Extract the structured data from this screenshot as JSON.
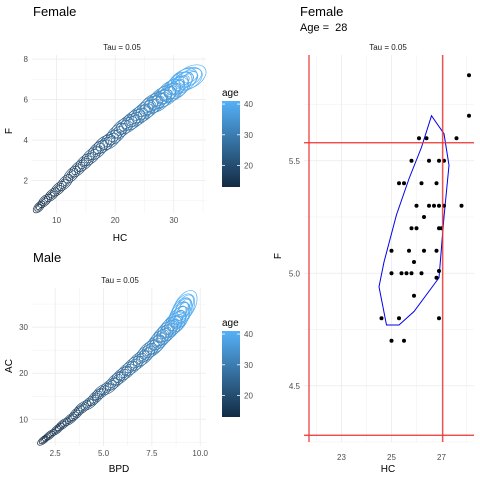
{
  "chart_data": [
    {
      "type": "contour",
      "title": "Female",
      "strip": "Tau = 0.05",
      "xlabel": "HC",
      "ylabel": "F",
      "xlim": [
        5.8,
        35.5
      ],
      "ylim": [
        0.4,
        8.2
      ],
      "x_ticks": [
        10,
        20,
        30
      ],
      "y_ticks": [
        2,
        4,
        6,
        8
      ],
      "legend": {
        "title": "age",
        "ticks": [
          20,
          30,
          40
        ],
        "range": [
          13,
          41
        ],
        "colors": [
          "#132B43",
          "#56B1F7"
        ]
      },
      "contours": [
        {
          "age": 13,
          "hc": 7.0,
          "f": 0.7,
          "w": 1.0,
          "h": 0.25
        },
        {
          "age": 14,
          "hc": 8.0,
          "f": 1.0,
          "w": 1.2,
          "h": 0.3
        },
        {
          "age": 15,
          "hc": 9.2,
          "f": 1.3,
          "w": 1.3,
          "h": 0.32
        },
        {
          "age": 16,
          "hc": 10.3,
          "f": 1.6,
          "w": 1.4,
          "h": 0.35
        },
        {
          "age": 17,
          "hc": 11.4,
          "f": 1.9,
          "w": 1.5,
          "h": 0.38
        },
        {
          "age": 18,
          "hc": 12.6,
          "f": 2.3,
          "w": 1.6,
          "h": 0.4
        },
        {
          "age": 19,
          "hc": 13.7,
          "f": 2.6,
          "w": 1.7,
          "h": 0.42
        },
        {
          "age": 20,
          "hc": 14.8,
          "f": 2.9,
          "w": 1.8,
          "h": 0.45
        },
        {
          "age": 21,
          "hc": 15.9,
          "f": 3.2,
          "w": 1.9,
          "h": 0.48
        },
        {
          "age": 22,
          "hc": 17.0,
          "f": 3.5,
          "w": 1.9,
          "h": 0.5
        },
        {
          "age": 23,
          "hc": 18.1,
          "f": 3.8,
          "w": 2.0,
          "h": 0.52
        },
        {
          "age": 24,
          "hc": 19.2,
          "f": 4.0,
          "w": 2.0,
          "h": 0.54
        },
        {
          "age": 25,
          "hc": 20.2,
          "f": 4.3,
          "w": 2.1,
          "h": 0.56
        },
        {
          "age": 26,
          "hc": 21.2,
          "f": 4.6,
          "w": 2.1,
          "h": 0.58
        },
        {
          "age": 27,
          "hc": 22.2,
          "f": 4.8,
          "w": 2.2,
          "h": 0.6
        },
        {
          "age": 28,
          "hc": 23.1,
          "f": 5.0,
          "w": 2.2,
          "h": 0.62
        },
        {
          "age": 29,
          "hc": 24.0,
          "f": 5.2,
          "w": 2.3,
          "h": 0.64
        },
        {
          "age": 30,
          "hc": 24.9,
          "f": 5.4,
          "w": 2.3,
          "h": 0.66
        },
        {
          "age": 31,
          "hc": 25.7,
          "f": 5.6,
          "w": 2.4,
          "h": 0.68
        },
        {
          "age": 32,
          "hc": 26.5,
          "f": 5.8,
          "w": 2.4,
          "h": 0.7
        },
        {
          "age": 33,
          "hc": 27.3,
          "f": 5.9,
          "w": 2.5,
          "h": 0.72
        },
        {
          "age": 34,
          "hc": 28.0,
          "f": 6.1,
          "w": 2.5,
          "h": 0.74
        },
        {
          "age": 35,
          "hc": 28.7,
          "f": 6.2,
          "w": 2.6,
          "h": 0.76
        },
        {
          "age": 36,
          "hc": 29.4,
          "f": 6.4,
          "w": 2.6,
          "h": 0.78
        },
        {
          "age": 37,
          "hc": 30.1,
          "f": 6.5,
          "w": 2.7,
          "h": 0.8
        },
        {
          "age": 38,
          "hc": 30.8,
          "f": 6.7,
          "w": 2.7,
          "h": 0.82
        },
        {
          "age": 39,
          "hc": 31.5,
          "f": 6.9,
          "w": 2.8,
          "h": 0.84
        },
        {
          "age": 40,
          "hc": 32.2,
          "f": 7.0,
          "w": 2.8,
          "h": 0.86
        },
        {
          "age": 41,
          "hc": 32.8,
          "f": 7.1,
          "w": 2.9,
          "h": 0.88
        }
      ]
    },
    {
      "type": "contour",
      "title": "Male",
      "strip": "Tau = 0.05",
      "xlabel": "BPD",
      "ylabel": "AC",
      "xlim": [
        1.3,
        10.3
      ],
      "ylim": [
        4.2,
        38.5
      ],
      "x_ticks": [
        2.5,
        5.0,
        7.5,
        10.0
      ],
      "x_tick_labels": [
        "2.5",
        "5.0",
        "7.5",
        "10.0"
      ],
      "y_ticks": [
        10,
        20,
        30
      ],
      "legend": {
        "title": "age",
        "ticks": [
          20,
          30,
          40
        ],
        "range": [
          13,
          41
        ],
        "colors": [
          "#132B43",
          "#56B1F7"
        ]
      },
      "contours": [
        {
          "age": 13,
          "bpd": 1.9,
          "ac": 5.5,
          "w": 0.3,
          "h": 0.8
        },
        {
          "age": 14,
          "bpd": 2.2,
          "ac": 6.5,
          "w": 0.35,
          "h": 0.9
        },
        {
          "age": 15,
          "bpd": 2.6,
          "ac": 7.8,
          "w": 0.38,
          "h": 1.0
        },
        {
          "age": 16,
          "bpd": 2.9,
          "ac": 8.9,
          "w": 0.4,
          "h": 1.1
        },
        {
          "age": 17,
          "bpd": 3.3,
          "ac": 10.1,
          "w": 0.42,
          "h": 1.2
        },
        {
          "age": 18,
          "bpd": 3.6,
          "ac": 11.3,
          "w": 0.44,
          "h": 1.3
        },
        {
          "age": 19,
          "bpd": 3.9,
          "ac": 12.5,
          "w": 0.46,
          "h": 1.4
        },
        {
          "age": 20,
          "bpd": 4.3,
          "ac": 13.6,
          "w": 0.48,
          "h": 1.5
        },
        {
          "age": 21,
          "bpd": 4.6,
          "ac": 14.8,
          "w": 0.5,
          "h": 1.6
        },
        {
          "age": 22,
          "bpd": 4.9,
          "ac": 16.0,
          "w": 0.52,
          "h": 1.7
        },
        {
          "age": 23,
          "bpd": 5.3,
          "ac": 17.1,
          "w": 0.54,
          "h": 1.8
        },
        {
          "age": 24,
          "bpd": 5.6,
          "ac": 18.3,
          "w": 0.56,
          "h": 1.9
        },
        {
          "age": 25,
          "bpd": 5.9,
          "ac": 19.4,
          "w": 0.58,
          "h": 2.0
        },
        {
          "age": 26,
          "bpd": 6.2,
          "ac": 20.5,
          "w": 0.6,
          "h": 2.1
        },
        {
          "age": 27,
          "bpd": 6.5,
          "ac": 21.6,
          "w": 0.62,
          "h": 2.2
        },
        {
          "age": 28,
          "bpd": 6.8,
          "ac": 22.7,
          "w": 0.64,
          "h": 2.3
        },
        {
          "age": 29,
          "bpd": 7.1,
          "ac": 23.8,
          "w": 0.66,
          "h": 2.4
        },
        {
          "age": 30,
          "bpd": 7.3,
          "ac": 24.8,
          "w": 0.68,
          "h": 2.5
        },
        {
          "age": 31,
          "bpd": 7.6,
          "ac": 25.8,
          "w": 0.7,
          "h": 2.6
        },
        {
          "age": 32,
          "bpd": 7.8,
          "ac": 26.8,
          "w": 0.72,
          "h": 2.7
        },
        {
          "age": 33,
          "bpd": 8.0,
          "ac": 27.8,
          "w": 0.74,
          "h": 2.8
        },
        {
          "age": 34,
          "bpd": 8.2,
          "ac": 28.7,
          "w": 0.76,
          "h": 2.9
        },
        {
          "age": 35,
          "bpd": 8.4,
          "ac": 29.6,
          "w": 0.78,
          "h": 3.0
        },
        {
          "age": 36,
          "bpd": 8.6,
          "ac": 30.5,
          "w": 0.8,
          "h": 3.1
        },
        {
          "age": 37,
          "bpd": 8.8,
          "ac": 31.4,
          "w": 0.82,
          "h": 3.2
        },
        {
          "age": 38,
          "bpd": 8.9,
          "ac": 32.2,
          "w": 0.84,
          "h": 3.3
        },
        {
          "age": 39,
          "bpd": 9.0,
          "ac": 33.0,
          "w": 0.86,
          "h": 3.4
        },
        {
          "age": 40,
          "bpd": 9.1,
          "ac": 33.8,
          "w": 0.88,
          "h": 3.5
        },
        {
          "age": 41,
          "bpd": 9.2,
          "ac": 34.5,
          "w": 0.9,
          "h": 3.6
        }
      ]
    },
    {
      "type": "scatter",
      "title": "Female",
      "subtitle_label": "Age = ",
      "subtitle_value": "28",
      "strip": "Tau = 0.05",
      "xlabel": "HC",
      "ylabel": "F",
      "xlim": [
        21.5,
        28.3
      ],
      "ylim": [
        4.25,
        5.97
      ],
      "x_ticks": [
        23,
        25,
        27
      ],
      "y_ticks": [
        4.5,
        5.0,
        5.5
      ],
      "y_tick_labels": [
        "4.5",
        "5.0",
        "5.5"
      ],
      "hlines": [
        5.58,
        4.28
      ],
      "vlines": [
        21.7,
        27.05
      ],
      "hull": [
        [
          24.8,
          4.77
        ],
        [
          25.3,
          4.77
        ],
        [
          25.9,
          4.83
        ],
        [
          26.9,
          4.98
        ],
        [
          27.1,
          5.25
        ],
        [
          27.3,
          5.48
        ],
        [
          27.1,
          5.62
        ],
        [
          26.6,
          5.7
        ],
        [
          26.2,
          5.56
        ],
        [
          25.7,
          5.42
        ],
        [
          25.2,
          5.26
        ],
        [
          24.7,
          5.05
        ],
        [
          24.5,
          4.94
        ]
      ],
      "points": [
        {
          "x": 28.1,
          "y": 5.88
        },
        {
          "x": 28.1,
          "y": 5.7
        },
        {
          "x": 26.1,
          "y": 5.6
        },
        {
          "x": 26.4,
          "y": 5.6
        },
        {
          "x": 27.6,
          "y": 5.6
        },
        {
          "x": 25.8,
          "y": 5.5
        },
        {
          "x": 26.5,
          "y": 5.5
        },
        {
          "x": 26.9,
          "y": 5.5
        },
        {
          "x": 27.1,
          "y": 5.5
        },
        {
          "x": 25.3,
          "y": 5.4
        },
        {
          "x": 25.5,
          "y": 5.4
        },
        {
          "x": 26.2,
          "y": 5.4
        },
        {
          "x": 26.8,
          "y": 5.4
        },
        {
          "x": 26.0,
          "y": 5.3
        },
        {
          "x": 26.5,
          "y": 5.3
        },
        {
          "x": 26.7,
          "y": 5.3
        },
        {
          "x": 26.9,
          "y": 5.3
        },
        {
          "x": 27.1,
          "y": 5.3
        },
        {
          "x": 27.8,
          "y": 5.3
        },
        {
          "x": 26.3,
          "y": 5.25
        },
        {
          "x": 25.8,
          "y": 5.2
        },
        {
          "x": 26.0,
          "y": 5.2
        },
        {
          "x": 26.9,
          "y": 5.2
        },
        {
          "x": 27.0,
          "y": 5.2
        },
        {
          "x": 25.0,
          "y": 5.1
        },
        {
          "x": 25.7,
          "y": 5.1
        },
        {
          "x": 26.3,
          "y": 5.1
        },
        {
          "x": 26.8,
          "y": 5.1
        },
        {
          "x": 25.9,
          "y": 5.05
        },
        {
          "x": 25.0,
          "y": 5.0
        },
        {
          "x": 25.4,
          "y": 5.0
        },
        {
          "x": 25.6,
          "y": 5.0
        },
        {
          "x": 25.8,
          "y": 5.0
        },
        {
          "x": 26.2,
          "y": 5.0
        },
        {
          "x": 26.9,
          "y": 5.01
        },
        {
          "x": 26.8,
          "y": 4.98
        },
        {
          "x": 25.9,
          "y": 4.9
        },
        {
          "x": 24.6,
          "y": 4.8
        },
        {
          "x": 25.3,
          "y": 4.8
        },
        {
          "x": 26.9,
          "y": 4.8
        },
        {
          "x": 25.0,
          "y": 4.7
        },
        {
          "x": 25.5,
          "y": 4.7
        }
      ]
    }
  ]
}
